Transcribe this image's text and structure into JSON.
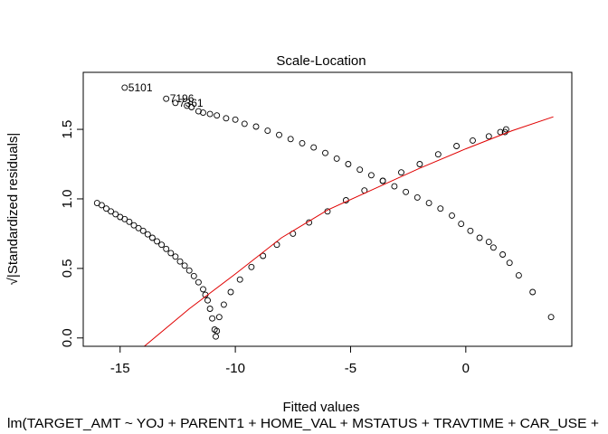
{
  "chart_data": {
    "type": "scatter",
    "title": "Scale-Location",
    "xlabel": "Fitted values",
    "ylabel": "√|Standardized residuals|",
    "subtitle": "lm(TARGET_AMT ~ YOJ + PARENT1 + HOME_VAL + MSTATUS + TRAVTIME + CAR_USE +",
    "xlim": [
      -16.6,
      4.6
    ],
    "ylim": [
      -0.06,
      1.91
    ],
    "x_ticks": [
      -15,
      -10,
      -5,
      0
    ],
    "x_tick_labels": [
      "-15",
      "-10",
      "-5",
      "0"
    ],
    "y_ticks": [
      0.0,
      0.5,
      1.0,
      1.5
    ],
    "y_tick_labels": [
      "0.0",
      "0.5",
      "1.0",
      "1.5"
    ],
    "grid": false,
    "series": [
      {
        "values": [
          [
            -16.0,
            0.97
          ],
          [
            -15.8,
            0.955
          ],
          [
            -15.6,
            0.93
          ],
          [
            -15.4,
            0.91
          ],
          [
            -15.2,
            0.89
          ],
          [
            -15.0,
            0.87
          ],
          [
            -14.8,
            0.855
          ],
          [
            -14.6,
            0.835
          ],
          [
            -14.4,
            0.81
          ],
          [
            -14.2,
            0.79
          ],
          [
            -14.0,
            0.77
          ],
          [
            -13.8,
            0.745
          ],
          [
            -13.6,
            0.72
          ],
          [
            -13.4,
            0.695
          ],
          [
            -13.2,
            0.67
          ],
          [
            -13.0,
            0.64
          ],
          [
            -12.8,
            0.61
          ],
          [
            -12.6,
            0.585
          ],
          [
            -12.4,
            0.55
          ],
          [
            -12.2,
            0.52
          ],
          [
            -12.0,
            0.485
          ],
          [
            -11.8,
            0.445
          ],
          [
            -11.6,
            0.4
          ],
          [
            -11.4,
            0.35
          ],
          [
            -11.3,
            0.31
          ],
          [
            -11.2,
            0.27
          ],
          [
            -11.1,
            0.21
          ],
          [
            -11.0,
            0.14
          ],
          [
            -10.9,
            0.06
          ],
          [
            -10.85,
            0.01
          ],
          [
            -10.8,
            0.05
          ],
          [
            -10.7,
            0.15
          ],
          [
            -10.5,
            0.24
          ],
          [
            -10.2,
            0.33
          ],
          [
            -9.8,
            0.42
          ],
          [
            -9.3,
            0.51
          ],
          [
            -8.8,
            0.59
          ],
          [
            -8.2,
            0.67
          ],
          [
            -7.5,
            0.75
          ],
          [
            -6.8,
            0.83
          ],
          [
            -6.0,
            0.91
          ],
          [
            -5.2,
            0.99
          ],
          [
            -4.4,
            1.06
          ],
          [
            -3.6,
            1.13
          ],
          [
            -2.8,
            1.19
          ],
          [
            -2.0,
            1.25
          ],
          [
            -1.2,
            1.32
          ],
          [
            -0.4,
            1.38
          ],
          [
            0.3,
            1.42
          ],
          [
            1.0,
            1.45
          ],
          [
            1.5,
            1.48
          ],
          [
            1.7,
            1.48
          ],
          [
            1.75,
            1.5
          ],
          [
            -12.1,
            1.67
          ],
          [
            -11.9,
            1.66
          ],
          [
            -11.6,
            1.63
          ],
          [
            -11.4,
            1.62
          ],
          [
            -11.1,
            1.61
          ],
          [
            -10.8,
            1.6
          ],
          [
            -10.4,
            1.58
          ],
          [
            -10.0,
            1.57
          ],
          [
            -9.6,
            1.54
          ],
          [
            -9.1,
            1.52
          ],
          [
            -8.6,
            1.49
          ],
          [
            -8.1,
            1.46
          ],
          [
            -7.6,
            1.43
          ],
          [
            -7.1,
            1.4
          ],
          [
            -6.6,
            1.37
          ],
          [
            -6.1,
            1.33
          ],
          [
            -5.6,
            1.29
          ],
          [
            -5.1,
            1.25
          ],
          [
            -4.6,
            1.21
          ],
          [
            -4.1,
            1.17
          ],
          [
            -3.6,
            1.13
          ],
          [
            -3.1,
            1.09
          ],
          [
            -2.6,
            1.05
          ],
          [
            -2.1,
            1.01
          ],
          [
            -1.6,
            0.97
          ],
          [
            -1.1,
            0.93
          ],
          [
            -0.6,
            0.88
          ],
          [
            -0.2,
            0.82
          ],
          [
            0.2,
            0.77
          ],
          [
            0.6,
            0.72
          ],
          [
            1.0,
            0.69
          ],
          [
            1.2,
            0.65
          ],
          [
            1.6,
            0.6
          ],
          [
            1.9,
            0.54
          ],
          [
            2.3,
            0.45
          ],
          [
            2.9,
            0.33
          ],
          [
            3.7,
            0.15
          ]
        ]
      }
    ],
    "labeled_points": [
      {
        "label": "5101",
        "x": -14.8,
        "y": 1.8
      },
      {
        "label": "7196",
        "x": -13.0,
        "y": 1.72
      },
      {
        "label": "7361",
        "x": -12.6,
        "y": 1.69
      }
    ],
    "smooth_line": {
      "color": "#e00000",
      "x": [
        -13.95,
        -12.0,
        -10.0,
        -8.0,
        -6.0,
        -4.0,
        -2.0,
        0.0,
        2.0,
        3.8
      ],
      "y": [
        -0.06,
        0.21,
        0.46,
        0.72,
        0.92,
        1.07,
        1.22,
        1.36,
        1.49,
        1.59
      ]
    }
  }
}
